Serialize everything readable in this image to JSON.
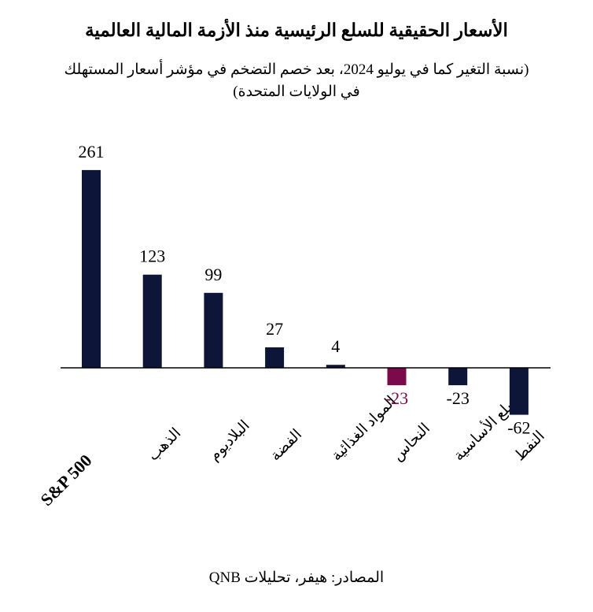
{
  "title": "الأسعار الحقيقية للسلع الرئيسية منذ الأزمة المالية العالمية",
  "subtitle_line1": "(نسبة التغير كما في يوليو 2024، بعد خصم التضخم في مؤشر أسعار المستهلك",
  "subtitle_line2": "في الولايات المتحدة)",
  "source": "المصادر: هيفر، تحليلات QNB",
  "colors": {
    "positive_bar": "#0d1638",
    "negative_highlight": "#7b0a4a",
    "negative_bar": "#0d1638",
    "axis": "#000000",
    "label_default": "#000000",
    "label_highlight": "#7b0a4a"
  },
  "chart_data": {
    "type": "bar",
    "categories": [
      "S&P 500",
      "الذهب",
      "البلاديوم",
      "الفضة",
      "المواد الغذائية",
      "النحاس",
      "السلع الأساسية",
      "النفط"
    ],
    "values": [
      261,
      123,
      99,
      27,
      4,
      -23,
      -23,
      -62
    ],
    "value_labels": [
      "261",
      "123",
      "99",
      "27",
      "4",
      "-23",
      "-23",
      "-62"
    ],
    "highlight_index": 5,
    "title": "الأسعار الحقيقية للسلع الرئيسية منذ الأزمة المالية العالمية",
    "xlabel": "",
    "ylabel": "",
    "ylim": [
      -70,
      280
    ],
    "grid": false,
    "legend": "none"
  }
}
